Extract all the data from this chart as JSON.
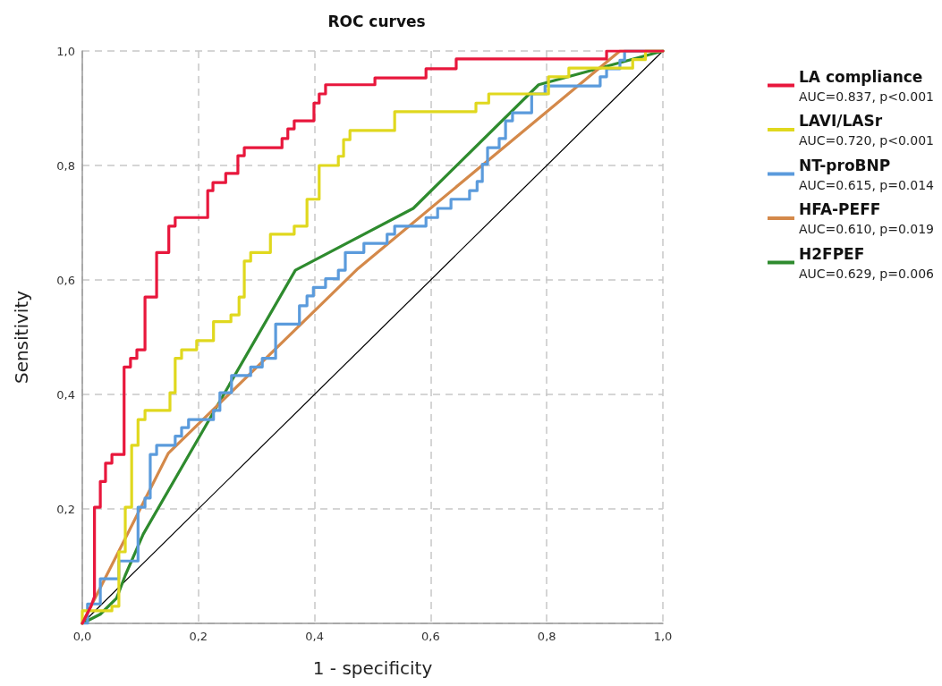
{
  "chart_data": {
    "type": "line",
    "title": "ROC curves",
    "xlabel": "1 - specificity",
    "ylabel": "Sensitivity",
    "xlim": [
      0,
      1
    ],
    "ylim": [
      0,
      1
    ],
    "xticks": [
      {
        "value": 0,
        "label": "0,0"
      },
      {
        "value": 0.2,
        "label": "0,2"
      },
      {
        "value": 0.4,
        "label": "0,4"
      },
      {
        "value": 0.6,
        "label": "0,6"
      },
      {
        "value": 0.8,
        "label": "0,8"
      },
      {
        "value": 1,
        "label": "1,0"
      }
    ],
    "yticks": [
      {
        "value": 0,
        "label": null
      },
      {
        "value": 0.2,
        "label": "0,2"
      },
      {
        "value": 0.4,
        "label": "0,4"
      },
      {
        "value": 0.6,
        "label": "0,6"
      },
      {
        "value": 0.8,
        "label": "0,8"
      },
      {
        "value": 1,
        "label": "1,0"
      }
    ],
    "grid": true,
    "legend": "right",
    "marker": "none",
    "line_style": "solid",
    "annotations": [
      "AUC=0.837, p<0.001",
      "AUC=0.720, p<0.001",
      "AUC=0.615, p=0.014",
      "AUC=0.610, p=0.019",
      "AUC=0.629, p=0.006"
    ],
    "series": [
      {
        "name": "LA compliance",
        "color": "#e8173c",
        "x": [
          0,
          0.015,
          0.021,
          0.021,
          0.031,
          0.031,
          0.04,
          0.04,
          0.051,
          0.051,
          0.072,
          0.072,
          0.083,
          0.083,
          0.094,
          0.094,
          0.108,
          0.108,
          0.128,
          0.128,
          0.149,
          0.149,
          0.16,
          0.16,
          0.216,
          0.216,
          0.225,
          0.225,
          0.247,
          0.247,
          0.268,
          0.268,
          0.279,
          0.279,
          0.344,
          0.344,
          0.354,
          0.354,
          0.365,
          0.365,
          0.399,
          0.399,
          0.408,
          0.408,
          0.419,
          0.419,
          0.504,
          0.504,
          0.592,
          0.592,
          0.644,
          0.644,
          0.903,
          0.903,
          1
        ],
        "values": [
          0,
          0.03,
          0.047,
          0.203,
          0.203,
          0.248,
          0.248,
          0.28,
          0.28,
          0.295,
          0.295,
          0.448,
          0.448,
          0.463,
          0.463,
          0.478,
          0.478,
          0.57,
          0.57,
          0.648,
          0.648,
          0.694,
          0.694,
          0.709,
          0.709,
          0.756,
          0.756,
          0.77,
          0.77,
          0.786,
          0.786,
          0.817,
          0.817,
          0.831,
          0.831,
          0.847,
          0.847,
          0.864,
          0.864,
          0.878,
          0.878,
          0.909,
          0.909,
          0.925,
          0.925,
          0.941,
          0.941,
          0.953,
          0.953,
          0.969,
          0.969,
          0.986,
          0.986,
          1,
          1
        ]
      },
      {
        "name": "LAVI/LASr",
        "color": "#e0d81e",
        "x": [
          0,
          0,
          0.051,
          0.051,
          0.063,
          0.063,
          0.074,
          0.074,
          0.085,
          0.085,
          0.096,
          0.096,
          0.108,
          0.108,
          0.151,
          0.151,
          0.16,
          0.16,
          0.171,
          0.171,
          0.197,
          0.197,
          0.226,
          0.226,
          0.256,
          0.256,
          0.27,
          0.27,
          0.279,
          0.279,
          0.29,
          0.29,
          0.324,
          0.324,
          0.365,
          0.365,
          0.387,
          0.387,
          0.408,
          0.408,
          0.441,
          0.441,
          0.45,
          0.45,
          0.461,
          0.461,
          0.538,
          0.538,
          0.678,
          0.678,
          0.7,
          0.7,
          0.803,
          0.803,
          0.838,
          0.838,
          0.948,
          0.948,
          0.97,
          0.97,
          1
        ],
        "values": [
          0,
          0.022,
          0.022,
          0.03,
          0.03,
          0.125,
          0.125,
          0.203,
          0.203,
          0.311,
          0.311,
          0.356,
          0.356,
          0.372,
          0.372,
          0.403,
          0.403,
          0.463,
          0.463,
          0.478,
          0.478,
          0.494,
          0.494,
          0.527,
          0.527,
          0.539,
          0.539,
          0.57,
          0.57,
          0.633,
          0.633,
          0.648,
          0.648,
          0.68,
          0.68,
          0.694,
          0.694,
          0.741,
          0.741,
          0.8,
          0.8,
          0.816,
          0.816,
          0.845,
          0.845,
          0.861,
          0.861,
          0.894,
          0.894,
          0.909,
          0.909,
          0.925,
          0.925,
          0.955,
          0.955,
          0.97,
          0.97,
          0.985,
          0.985,
          1,
          1
        ]
      },
      {
        "name": "NT-proBNP",
        "color": "#5b9bdc",
        "x": [
          0,
          0.009,
          0.009,
          0.031,
          0.031,
          0.063,
          0.063,
          0.096,
          0.096,
          0.108,
          0.108,
          0.117,
          0.117,
          0.128,
          0.128,
          0.16,
          0.16,
          0.171,
          0.171,
          0.183,
          0.183,
          0.226,
          0.226,
          0.237,
          0.237,
          0.257,
          0.257,
          0.29,
          0.29,
          0.31,
          0.31,
          0.333,
          0.333,
          0.374,
          0.374,
          0.387,
          0.387,
          0.398,
          0.398,
          0.419,
          0.419,
          0.441,
          0.441,
          0.453,
          0.453,
          0.485,
          0.485,
          0.525,
          0.525,
          0.538,
          0.538,
          0.592,
          0.592,
          0.612,
          0.612,
          0.635,
          0.635,
          0.667,
          0.667,
          0.68,
          0.68,
          0.689,
          0.689,
          0.698,
          0.698,
          0.718,
          0.718,
          0.729,
          0.729,
          0.741,
          0.741,
          0.774,
          0.774,
          0.797,
          0.797,
          0.892,
          0.892,
          0.903,
          0.903,
          0.926,
          0.926,
          0.934,
          0.934,
          1
        ],
        "values": [
          0,
          0,
          0.034,
          0.034,
          0.078,
          0.078,
          0.109,
          0.109,
          0.203,
          0.203,
          0.219,
          0.219,
          0.295,
          0.295,
          0.311,
          0.311,
          0.327,
          0.327,
          0.342,
          0.342,
          0.356,
          0.356,
          0.372,
          0.372,
          0.403,
          0.403,
          0.433,
          0.433,
          0.448,
          0.448,
          0.463,
          0.463,
          0.523,
          0.523,
          0.555,
          0.555,
          0.572,
          0.572,
          0.587,
          0.587,
          0.602,
          0.602,
          0.617,
          0.617,
          0.648,
          0.648,
          0.664,
          0.664,
          0.68,
          0.68,
          0.694,
          0.694,
          0.709,
          0.709,
          0.725,
          0.725,
          0.741,
          0.741,
          0.756,
          0.756,
          0.772,
          0.772,
          0.802,
          0.802,
          0.831,
          0.831,
          0.847,
          0.847,
          0.878,
          0.878,
          0.892,
          0.892,
          0.925,
          0.925,
          0.939,
          0.939,
          0.955,
          0.955,
          0.969,
          0.969,
          0.984,
          0.984,
          1,
          1
        ]
      },
      {
        "name": "HFA-PEFF",
        "color": "#d4894a",
        "x": [
          0,
          0.148,
          0.475,
          0.926,
          1
        ],
        "values": [
          0,
          0.297,
          0.62,
          1,
          1
        ]
      },
      {
        "name": "H2FPEF",
        "color": "#2e8b2e",
        "x": [
          0,
          0.031,
          0.059,
          0.074,
          0.105,
          0.367,
          0.57,
          0.786,
          1
        ],
        "values": [
          0,
          0.016,
          0.044,
          0.084,
          0.156,
          0.617,
          0.725,
          0.941,
          1
        ]
      },
      {
        "color": "#000000",
        "x": [
          0,
          1
        ],
        "values": [
          0,
          1
        ]
      }
    ]
  }
}
